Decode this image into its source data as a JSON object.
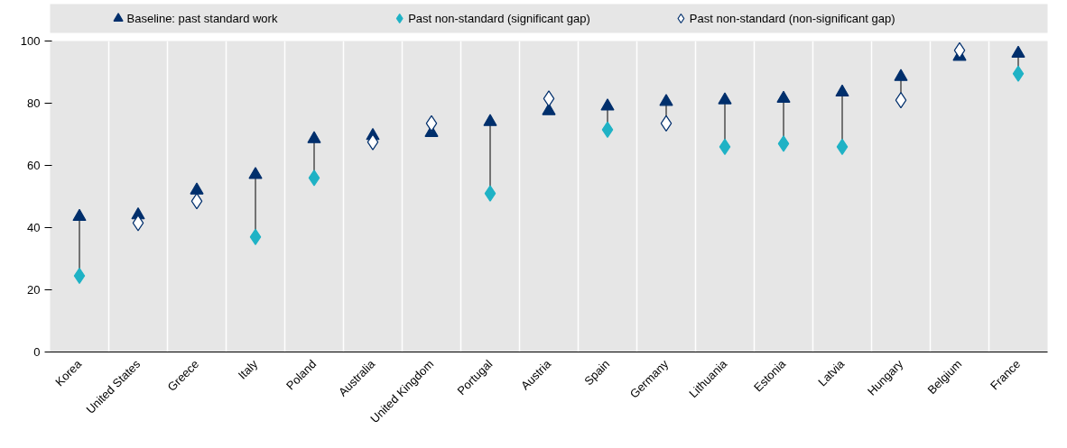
{
  "chart_data": {
    "type": "scatter",
    "categories": [
      "Korea",
      "United States",
      "Greece",
      "Italy",
      "Poland",
      "Australia",
      "United Kingdom",
      "Portugal",
      "Austria",
      "Spain",
      "Germany",
      "Lithuania",
      "Estonia",
      "Latvia",
      "Hungary",
      "Belgium",
      "France"
    ],
    "series": [
      {
        "name": "Baseline: past standard work",
        "color": "#002f6c",
        "marker": "triangle",
        "values": [
          43.5,
          44,
          52,
          57,
          68.5,
          69.5,
          70.5,
          74,
          77.5,
          79,
          80.5,
          81,
          81.5,
          83.5,
          88.5,
          95,
          96
        ]
      },
      {
        "name": "Past non-standard (significant gap)",
        "color": "#1fb2c5",
        "marker": "diamond",
        "values": [
          24.5,
          null,
          null,
          37,
          56,
          null,
          null,
          51,
          null,
          71.5,
          null,
          66,
          67,
          66,
          null,
          null,
          89.5
        ]
      },
      {
        "name": "Past non-standard (non-significant gap)",
        "color": "#002f6c",
        "marker": "diamond_open",
        "values": [
          null,
          41.5,
          48.5,
          null,
          null,
          67.5,
          73.5,
          null,
          81.5,
          null,
          73.5,
          null,
          null,
          null,
          81,
          97,
          null
        ]
      }
    ],
    "ylim": [
      0,
      100
    ],
    "yticks": [
      0,
      20,
      40,
      60,
      80,
      100
    ],
    "grid": "x",
    "legend": "top"
  }
}
